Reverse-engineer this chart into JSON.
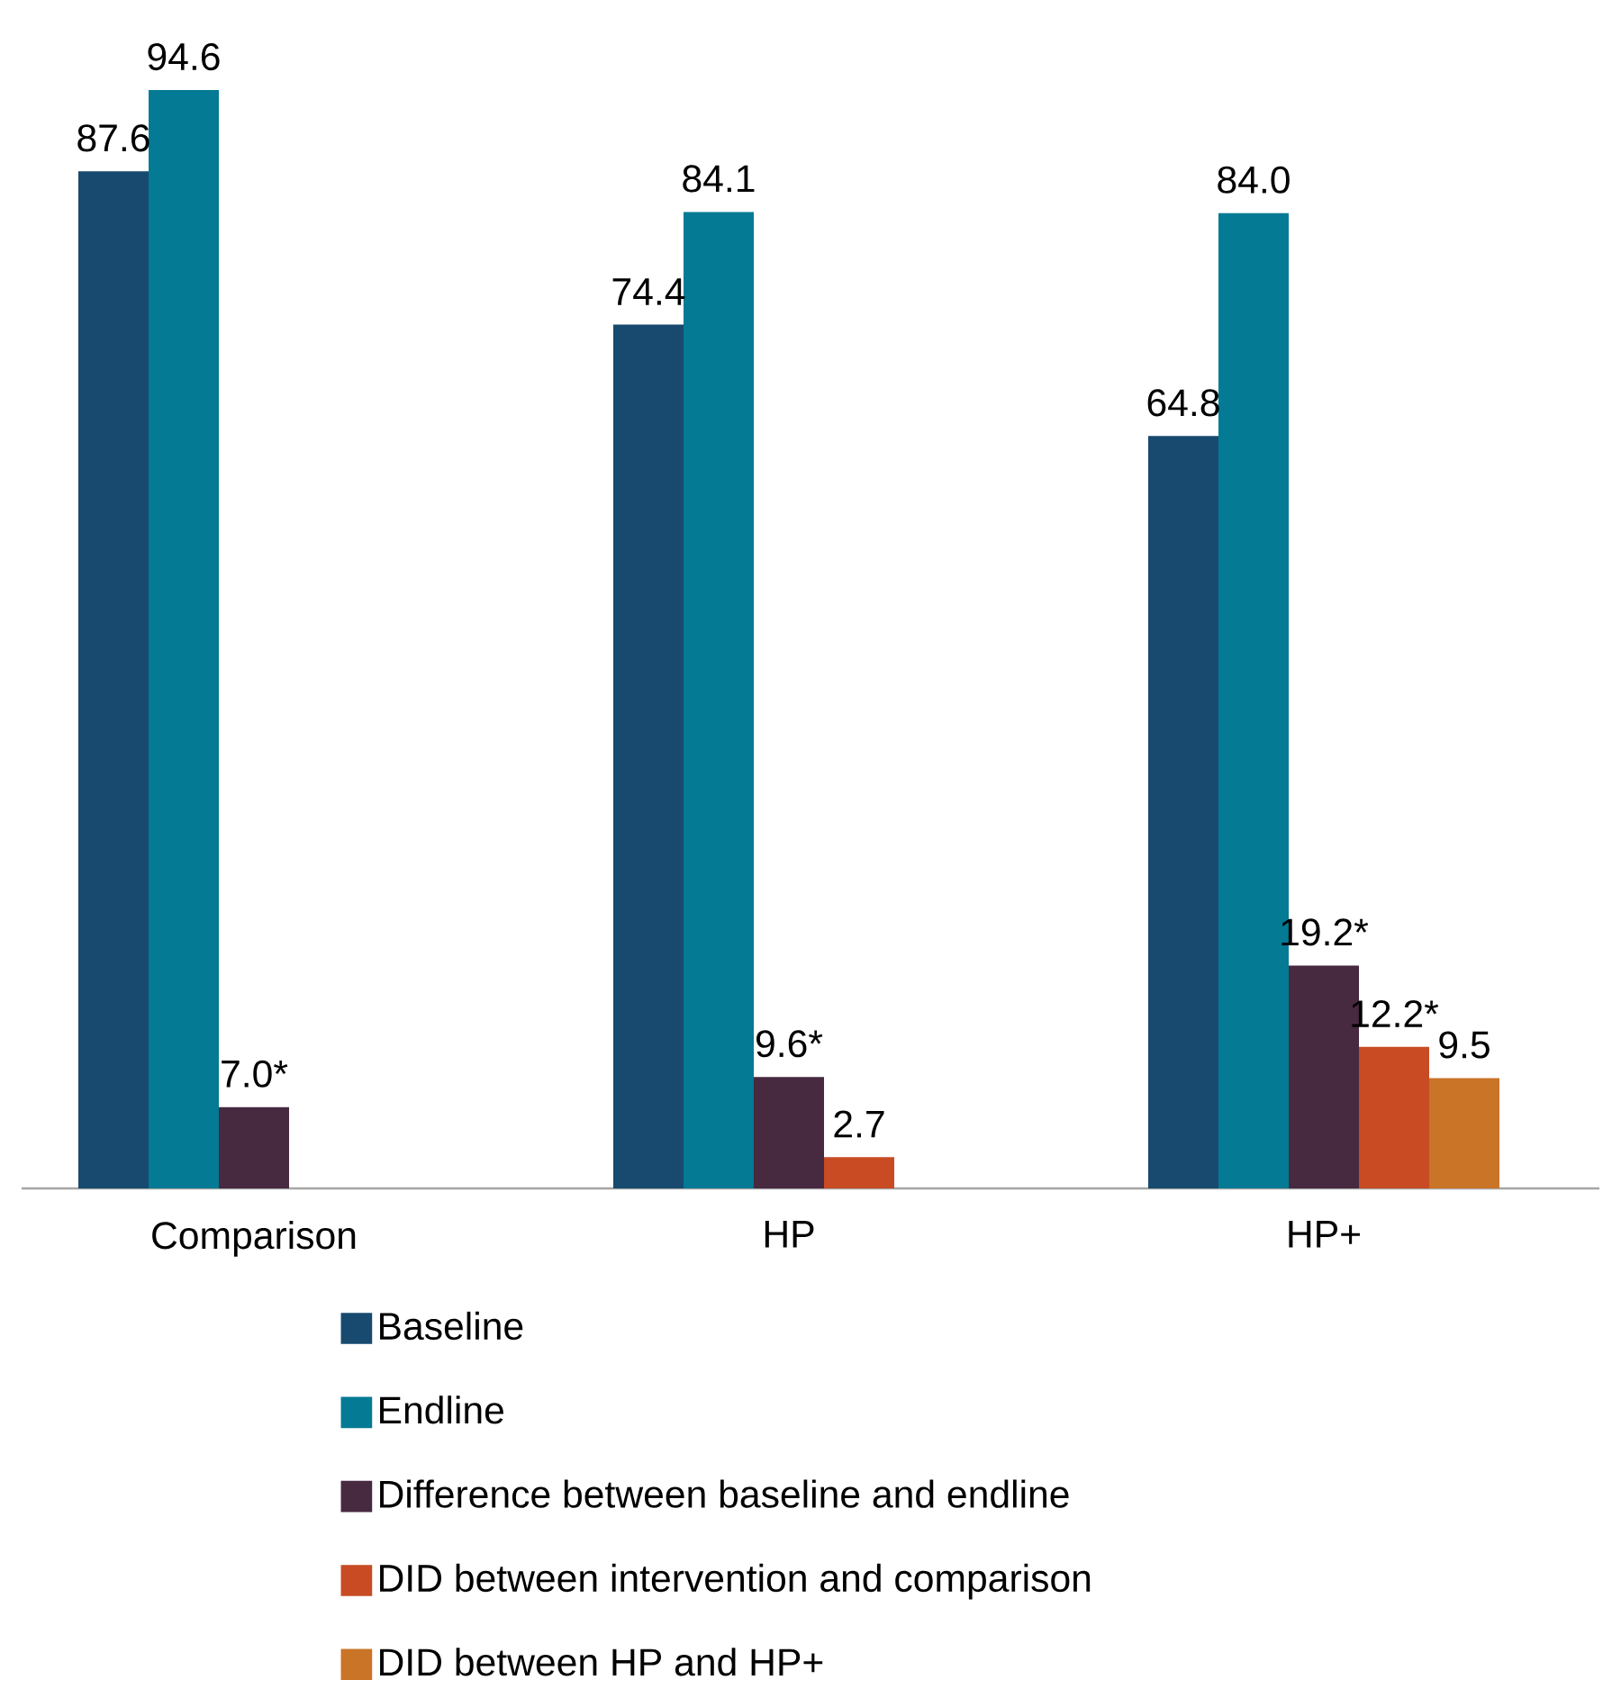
{
  "chart_data": {
    "type": "bar",
    "categories": [
      "Comparison",
      "HP",
      "HP+"
    ],
    "series": [
      {
        "name": "Baseline",
        "color": "#174a6e",
        "values": [
          87.6,
          74.4,
          64.8
        ],
        "value_labels": [
          "87.6",
          "74.4",
          "64.8"
        ]
      },
      {
        "name": "Endline",
        "color": "#047a94",
        "values": [
          94.6,
          84.1,
          84.0
        ],
        "value_labels": [
          "94.6",
          "84.1",
          "84.0"
        ]
      },
      {
        "name": "Difference between baseline and endline",
        "color": "#472940",
        "values": [
          7.0,
          9.6,
          19.2
        ],
        "value_labels": [
          "7.0*",
          "9.6*",
          "19.2*"
        ]
      },
      {
        "name": "DID between intervention and comparison",
        "color": "#c84b23",
        "values": [
          null,
          2.7,
          12.2
        ],
        "value_labels": [
          null,
          "2.7",
          "12.2*"
        ]
      },
      {
        "name": "DID between HP and HP+",
        "color": "#c97427",
        "values": [
          null,
          null,
          9.5
        ],
        "value_labels": [
          null,
          null,
          "9.5"
        ]
      }
    ],
    "tick_labels": "x",
    "legend": "bottom"
  }
}
